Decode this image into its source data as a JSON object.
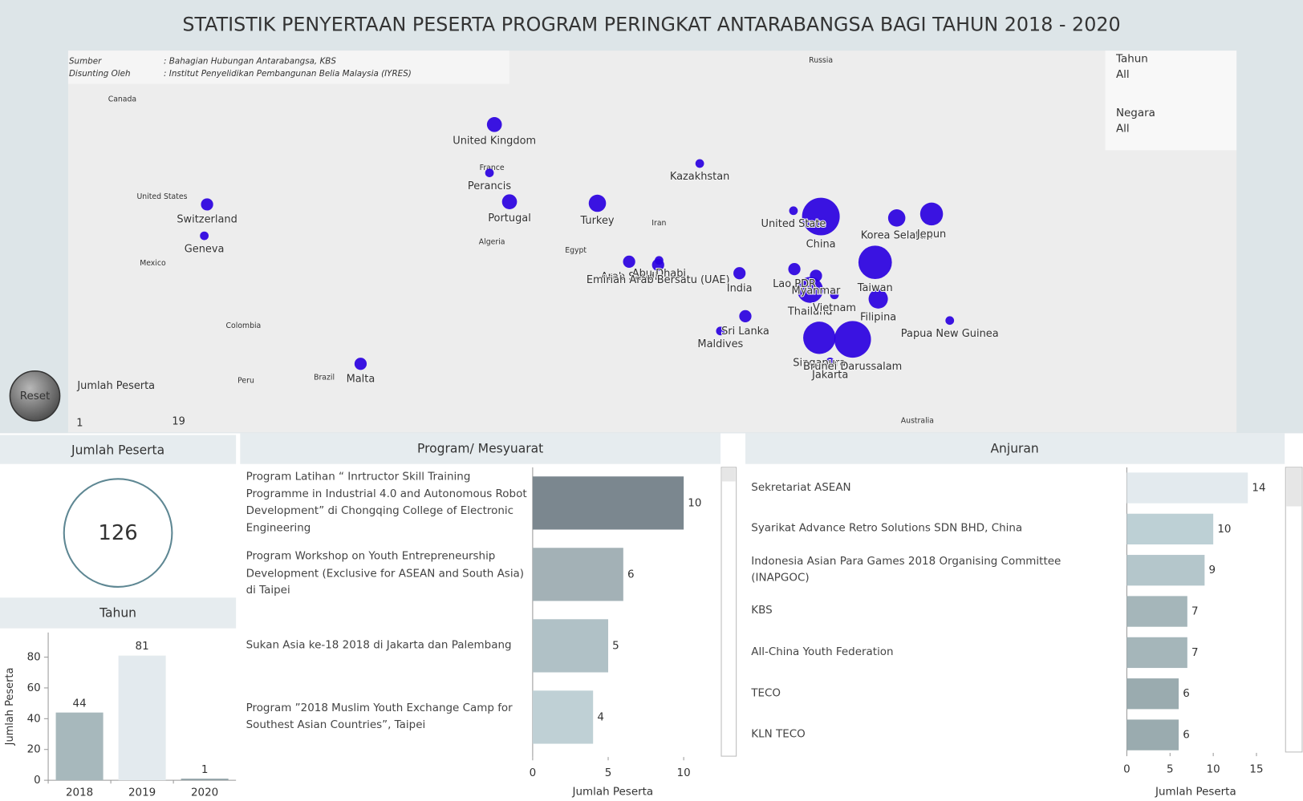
{
  "header": {
    "title": "STATISTIK PENYERTAAN PESERTA PROGRAM PERINGKAT ANTARABANGSA BAGI TAHUN 2018 - 2020"
  },
  "source": {
    "rows": [
      [
        "Sumber",
        ": Bahagian Hubungan Antarabangsa, KBS"
      ],
      [
        "Disunting Oleh",
        ": Institut Penyelidikan Pembangunan Belia Malaysia (IYRES)"
      ]
    ]
  },
  "filters": [
    {
      "label": "Tahun",
      "value": "All"
    },
    {
      "label": "Negara",
      "value": "All"
    }
  ],
  "reset": "Reset",
  "chart_data": [
    {
      "type": "map",
      "size_legend": {
        "title": "Jumlah Peserta",
        "min": 1,
        "max": 19
      },
      "color": "#2a00e0",
      "geo_labels": [
        {
          "name": "Russia",
          "lon": 104.0,
          "lat": 63.8
        },
        {
          "name": "Canada",
          "lon": -122.6,
          "lat": 57.6
        },
        {
          "name": "United States",
          "lon": -109.7,
          "lat": 36.5
        },
        {
          "name": "Mexico",
          "lon": -112.7,
          "lat": 17.4
        },
        {
          "name": "Colombia",
          "lon": -83.3,
          "lat": -2.7
        },
        {
          "name": "Peru",
          "lon": -82.5,
          "lat": -20.1
        },
        {
          "name": "Brazil",
          "lon": -57.1,
          "lat": -19.1
        },
        {
          "name": "Algeria",
          "lon": -2.7,
          "lat": 23.8
        },
        {
          "name": "Egypt",
          "lon": 24.5,
          "lat": 21.3
        },
        {
          "name": "Iran",
          "lon": 51.5,
          "lat": 29.3
        },
        {
          "name": "France",
          "lon": -2.7,
          "lat": 43.7
        },
        {
          "name": "Australia",
          "lon": 135.3,
          "lat": -31.7
        }
      ],
      "points": [
        {
          "name": "United Kingdom",
          "lon": -1.9,
          "lat": 53.0,
          "value": 3
        },
        {
          "name": "Perancis",
          "lon": -3.5,
          "lat": 42.5,
          "value": 1
        },
        {
          "name": "Portugal",
          "lon": 3.0,
          "lat": 35.2,
          "value": 3
        },
        {
          "name": "Switzerland",
          "lon": -95.1,
          "lat": 34.5,
          "value": 2
        },
        {
          "name": "Geneva",
          "lon": -96.0,
          "lat": 25.7,
          "value": 1
        },
        {
          "name": "Malta",
          "lon": -45.3,
          "lat": -14.8,
          "value": 2
        },
        {
          "name": "Turkey",
          "lon": 31.5,
          "lat": 34.8,
          "value": 4
        },
        {
          "name": "Kazakhstan",
          "lon": 64.7,
          "lat": 44.7,
          "value": 1
        },
        {
          "name": "Arab Saudi",
          "lon": 41.8,
          "lat": 17.9,
          "value": 2
        },
        {
          "name": "Abu Dhabi",
          "lon": 51.5,
          "lat": 18.3,
          "value": 1
        },
        {
          "name": "Emiriah Arab Bersatu (UAE)",
          "lon": 51.2,
          "lat": 16.9,
          "value": 2
        },
        {
          "name": "India",
          "lon": 77.6,
          "lat": 14.3,
          "value": 2
        },
        {
          "name": "Sri Lanka",
          "lon": 79.5,
          "lat": 0.5,
          "value": 2
        },
        {
          "name": "Maldives",
          "lon": 71.4,
          "lat": -4.3,
          "value": 1
        },
        {
          "name": "United State",
          "lon": 95.1,
          "lat": 32.8,
          "value": 1
        },
        {
          "name": "China",
          "lon": 104.0,
          "lat": 31.2,
          "value": 19
        },
        {
          "name": "Korea Selatan",
          "lon": 128.6,
          "lat": 30.8,
          "value": 4
        },
        {
          "name": "Jepun",
          "lon": 139.9,
          "lat": 31.9,
          "value": 7
        },
        {
          "name": "Lao PDR",
          "lon": 95.4,
          "lat": 15.6,
          "value": 2
        },
        {
          "name": "Myanmar",
          "lon": 102.4,
          "lat": 13.5,
          "value": 2
        },
        {
          "name": "Thailand",
          "lon": 100.5,
          "lat": 9.0,
          "value": 9
        },
        {
          "name": "Vietnam",
          "lon": 108.4,
          "lat": 7.4,
          "value": 1
        },
        {
          "name": "Taiwan",
          "lon": 121.6,
          "lat": 17.7,
          "value": 15
        },
        {
          "name": "Filipina",
          "lon": 122.6,
          "lat": 6.1,
          "value": 5
        },
        {
          "name": "Singapura",
          "lon": 103.5,
          "lat": -6.5,
          "value": 14
        },
        {
          "name": "Brunei Darussalam",
          "lon": 114.3,
          "lat": -7.0,
          "value": 18
        },
        {
          "name": "Jakarta",
          "lon": 107.0,
          "lat": -14.2,
          "value": 1
        },
        {
          "name": "Papua New Guinea",
          "lon": 145.8,
          "lat": -0.9,
          "value": 1
        }
      ]
    },
    {
      "type": "kpi",
      "title": "Jumlah Peserta",
      "value": 126
    },
    {
      "type": "bar",
      "title": "Tahun",
      "y_label": "Jumlah Peserta",
      "categories": [
        "2018",
        "2019",
        "2020"
      ],
      "values": [
        44,
        81,
        1
      ],
      "colors": [
        "#a7b8bc",
        "#e3eaee",
        "#8fa0a5"
      ],
      "ylim": [
        0,
        96
      ],
      "yticks": [
        0,
        20,
        40,
        60,
        80
      ]
    },
    {
      "type": "hbar",
      "title": "Program/ Mesyuarat",
      "x_label": "Jumlah Peserta",
      "categories": [
        "Program Latihan “ Inrtructor Skill Training Programme in Industrial 4.0 and Autonomous Robot Development” di Chongqing College of Electronic Engineering",
        "Program Workshop on Youth Entrepreneurship Development (Exclusive for ASEAN and South Asia) di Taipei",
        "Sukan Asia ke-18 2018 di Jakarta dan Palembang",
        "Program ”2018 Muslim Youth Exchange Camp for Southest Asian Countries”, Taipei"
      ],
      "values": [
        10,
        6,
        5,
        4
      ],
      "colors": [
        "#7b878f",
        "#a3b1b6",
        "#b0c1c6",
        "#bfd0d5"
      ],
      "xlim": [
        0,
        11.5
      ],
      "xticks": [
        0,
        5,
        10
      ]
    },
    {
      "type": "hbar",
      "title": "Anjuran",
      "x_label": "Jumlah Peserta",
      "categories": [
        "Sekretariat ASEAN",
        "Syarikat Advance Retro Solutions SDN BHD, China",
        "Indonesia Asian Para Games 2018 Organising Committee (INAPGOC)",
        "KBS",
        "All-China Youth Federation",
        "TECO",
        "KLN TECO"
      ],
      "values": [
        14,
        10,
        9,
        7,
        7,
        6,
        6
      ],
      "colors": [
        "#e3eaee",
        "#bdd0d5",
        "#b4c6cb",
        "#a5b6ba",
        "#a5b6ba",
        "#9aabaf",
        "#9aabaf"
      ],
      "xlim": [
        0,
        17.5
      ],
      "xticks": [
        0,
        5,
        10,
        15
      ]
    }
  ]
}
